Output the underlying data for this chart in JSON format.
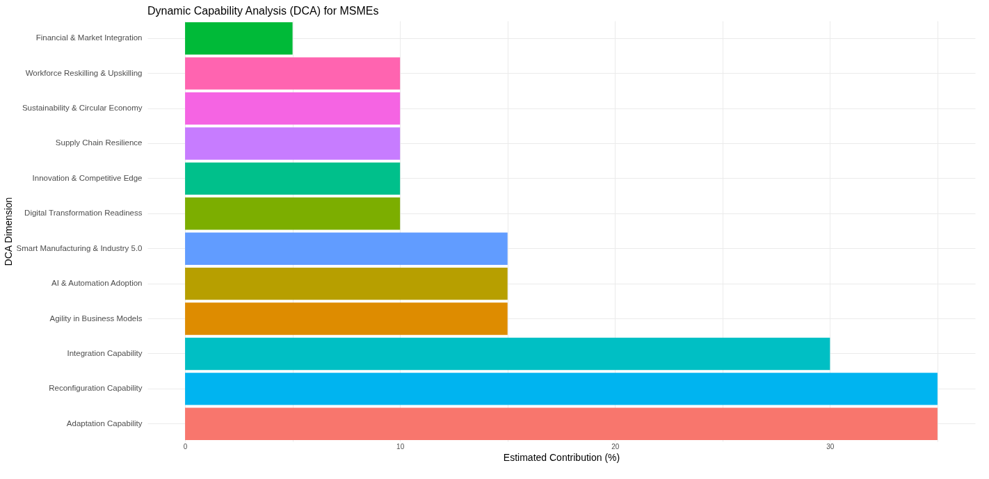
{
  "chart_data": {
    "type": "bar",
    "orientation": "horizontal",
    "title": "Dynamic Capability Analysis (DCA) for MSMEs",
    "xlabel": "Estimated Contribution (%)",
    "ylabel": "DCA Dimension",
    "categories": [
      "Financial & Market Integration",
      "Workforce Reskilling & Upskilling",
      "Sustainability & Circular Economy",
      "Supply Chain Resilience",
      "Innovation & Competitive Edge",
      "Digital Transformation Readiness",
      "Smart Manufacturing & Industry 5.0",
      "AI & Automation Adoption",
      "Agility in Business Models",
      "Integration Capability",
      "Reconfiguration Capability",
      "Adaptation Capability"
    ],
    "values": [
      5,
      10,
      10,
      10,
      10,
      10,
      15,
      15,
      15,
      30,
      35,
      35
    ],
    "colors": [
      "#00BA38",
      "#FF64B0",
      "#F564E3",
      "#C77CFF",
      "#00C08B",
      "#7CAE00",
      "#619CFF",
      "#B79F00",
      "#DE8C00",
      "#00BFC4",
      "#00B4F0",
      "#F8766D"
    ],
    "xlim": [
      -1.75,
      36.75
    ],
    "xticks": [
      0,
      {
        "value": 5,
        "label": null
      },
      10,
      {
        "value": 15,
        "label": null
      },
      20,
      {
        "value": 25,
        "label": null
      },
      30,
      {
        "value": 35,
        "label": null
      }
    ],
    "grid": true,
    "legend": false
  }
}
